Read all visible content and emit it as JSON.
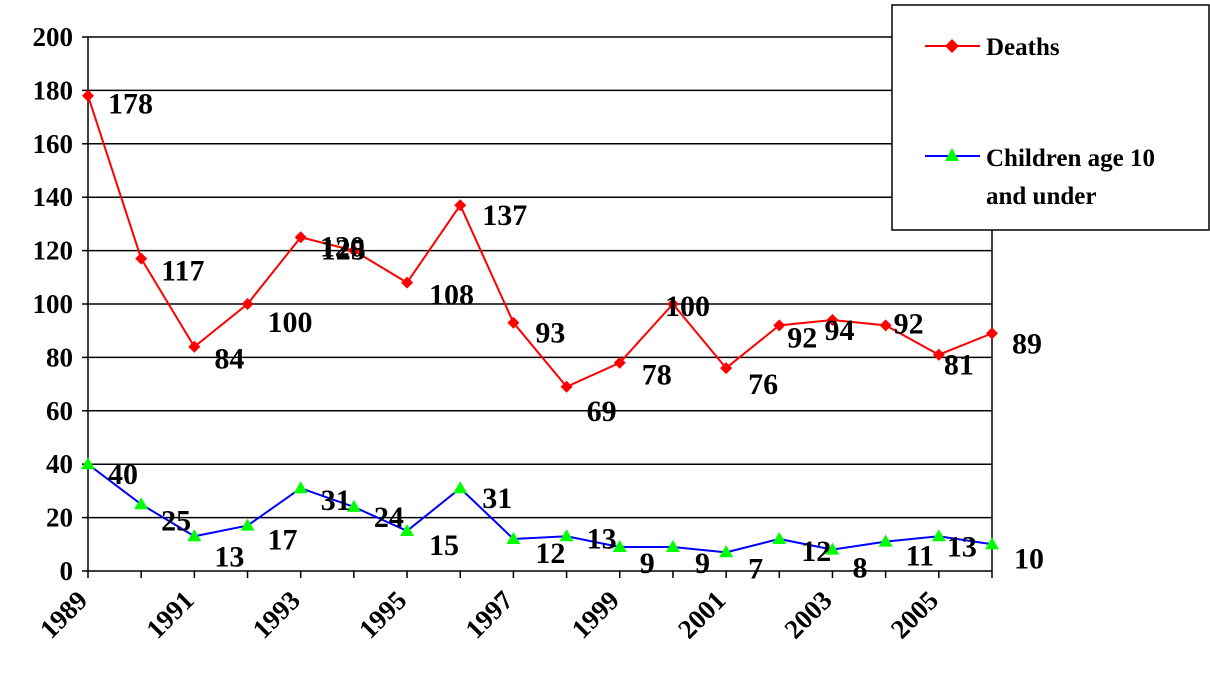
{
  "chart_data": {
    "type": "line",
    "title": "",
    "xlabel": "",
    "ylabel": "",
    "ylim": [
      0,
      200
    ],
    "yticks": [
      0,
      20,
      40,
      60,
      80,
      100,
      120,
      140,
      160,
      180,
      200
    ],
    "x": [
      1989,
      1990,
      1991,
      1992,
      1993,
      1994,
      1995,
      1996,
      1997,
      1998,
      1999,
      2000,
      2001,
      2002,
      2003,
      2004,
      2005,
      2006
    ],
    "xtick_labels": [
      "1989",
      "1991",
      "1993",
      "1995",
      "1997",
      "1999",
      "2001",
      "2003",
      "2005"
    ],
    "grid": "horizontal",
    "legend_position": "top-right",
    "series": [
      {
        "name": "Deaths",
        "color": "#ff0000",
        "marker": "diamond",
        "values": [
          178,
          117,
          84,
          100,
          125,
          120,
          108,
          137,
          93,
          69,
          78,
          100,
          76,
          92,
          94,
          92,
          81,
          89
        ]
      },
      {
        "name": "Children age 10 and under",
        "legend_lines": [
          "Children age 10",
          "and under"
        ],
        "color": "#0000ff",
        "marker_color": "#00ff00",
        "marker": "triangle",
        "values": [
          40,
          25,
          13,
          17,
          31,
          24,
          15,
          31,
          12,
          13,
          9,
          9,
          7,
          12,
          8,
          11,
          13,
          10
        ]
      }
    ]
  }
}
